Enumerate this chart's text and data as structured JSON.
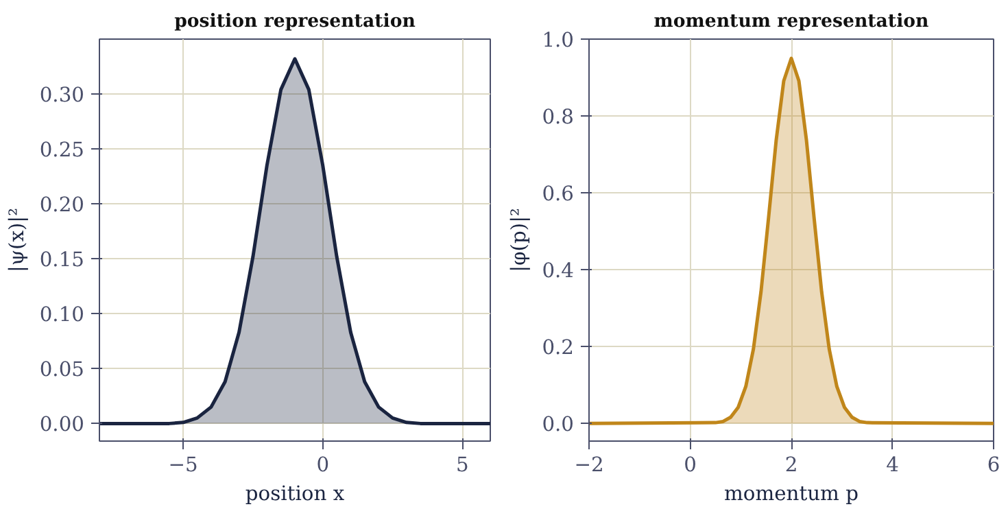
{
  "chart_data": [
    {
      "type": "area",
      "title": "position representation",
      "xlabel": "position x",
      "ylabel": "|ψ(x)|²",
      "x": [
        -8,
        -7.5,
        -7,
        -6.5,
        -6,
        -5.5,
        -5,
        -4.5,
        -4,
        -3.5,
        -3,
        -2.5,
        -2,
        -1.5,
        -1,
        -0.5,
        0,
        0.5,
        1,
        1.5,
        2,
        2.5,
        3,
        3.5,
        4,
        4.5,
        5,
        5.5,
        6
      ],
      "series": [
        {
          "color": "#1a2440",
          "values": [
            0,
            0,
            0,
            0,
            0,
            0,
            0.001,
            0.005,
            0.015,
            0.038,
            0.083,
            0.152,
            0.235,
            0.304,
            0.332,
            0.304,
            0.235,
            0.152,
            0.083,
            0.038,
            0.015,
            0.005,
            0.001,
            0,
            0,
            0,
            0,
            0,
            0
          ]
        }
      ],
      "xlim": [
        -8,
        6
      ],
      "xticks": [
        {
          "value": -5,
          "label": "−5"
        },
        0,
        5
      ],
      "ylim": [
        -0.016,
        0.35
      ],
      "yticks": [
        {
          "value": 0,
          "label": "0.00"
        },
        {
          "value": 0.05,
          "label": "0.05"
        },
        {
          "value": 0.1,
          "label": "0.10"
        },
        {
          "value": 0.15,
          "label": "0.15"
        },
        {
          "value": 0.2,
          "label": "0.20"
        },
        {
          "value": 0.25,
          "label": "0.25"
        },
        {
          "value": 0.3,
          "label": "0.30"
        }
      ],
      "grid": true
    },
    {
      "type": "area",
      "title": "momentum representation",
      "xlabel": "momentum p",
      "ylabel": "|φ(p)|²",
      "x": [
        -2,
        0.5,
        0.65,
        0.8,
        0.95,
        1.1,
        1.25,
        1.4,
        1.55,
        1.7,
        1.85,
        2.0,
        2.15,
        2.3,
        2.45,
        2.6,
        2.75,
        2.9,
        3.05,
        3.2,
        3.35,
        3.5,
        6
      ],
      "series": [
        {
          "color": "#c0861a",
          "values": [
            0,
            0.002,
            0.005,
            0.016,
            0.042,
            0.096,
            0.193,
            0.342,
            0.535,
            0.736,
            0.891,
            0.95,
            0.891,
            0.736,
            0.535,
            0.342,
            0.193,
            0.096,
            0.042,
            0.016,
            0.005,
            0.002,
            0
          ]
        }
      ],
      "xlim": [
        -2,
        6
      ],
      "xticks": [
        {
          "value": -2,
          "label": "−2"
        },
        0,
        2,
        4,
        6
      ],
      "ylim": [
        -0.046,
        1.0
      ],
      "yticks": [
        {
          "value": 0,
          "label": "0.0"
        },
        {
          "value": 0.2,
          "label": "0.2"
        },
        {
          "value": 0.4,
          "label": "0.4"
        },
        {
          "value": 0.6,
          "label": "0.6"
        },
        {
          "value": 0.8,
          "label": "0.8"
        },
        {
          "value": 1.0,
          "label": "1.0"
        }
      ],
      "grid": true
    }
  ]
}
